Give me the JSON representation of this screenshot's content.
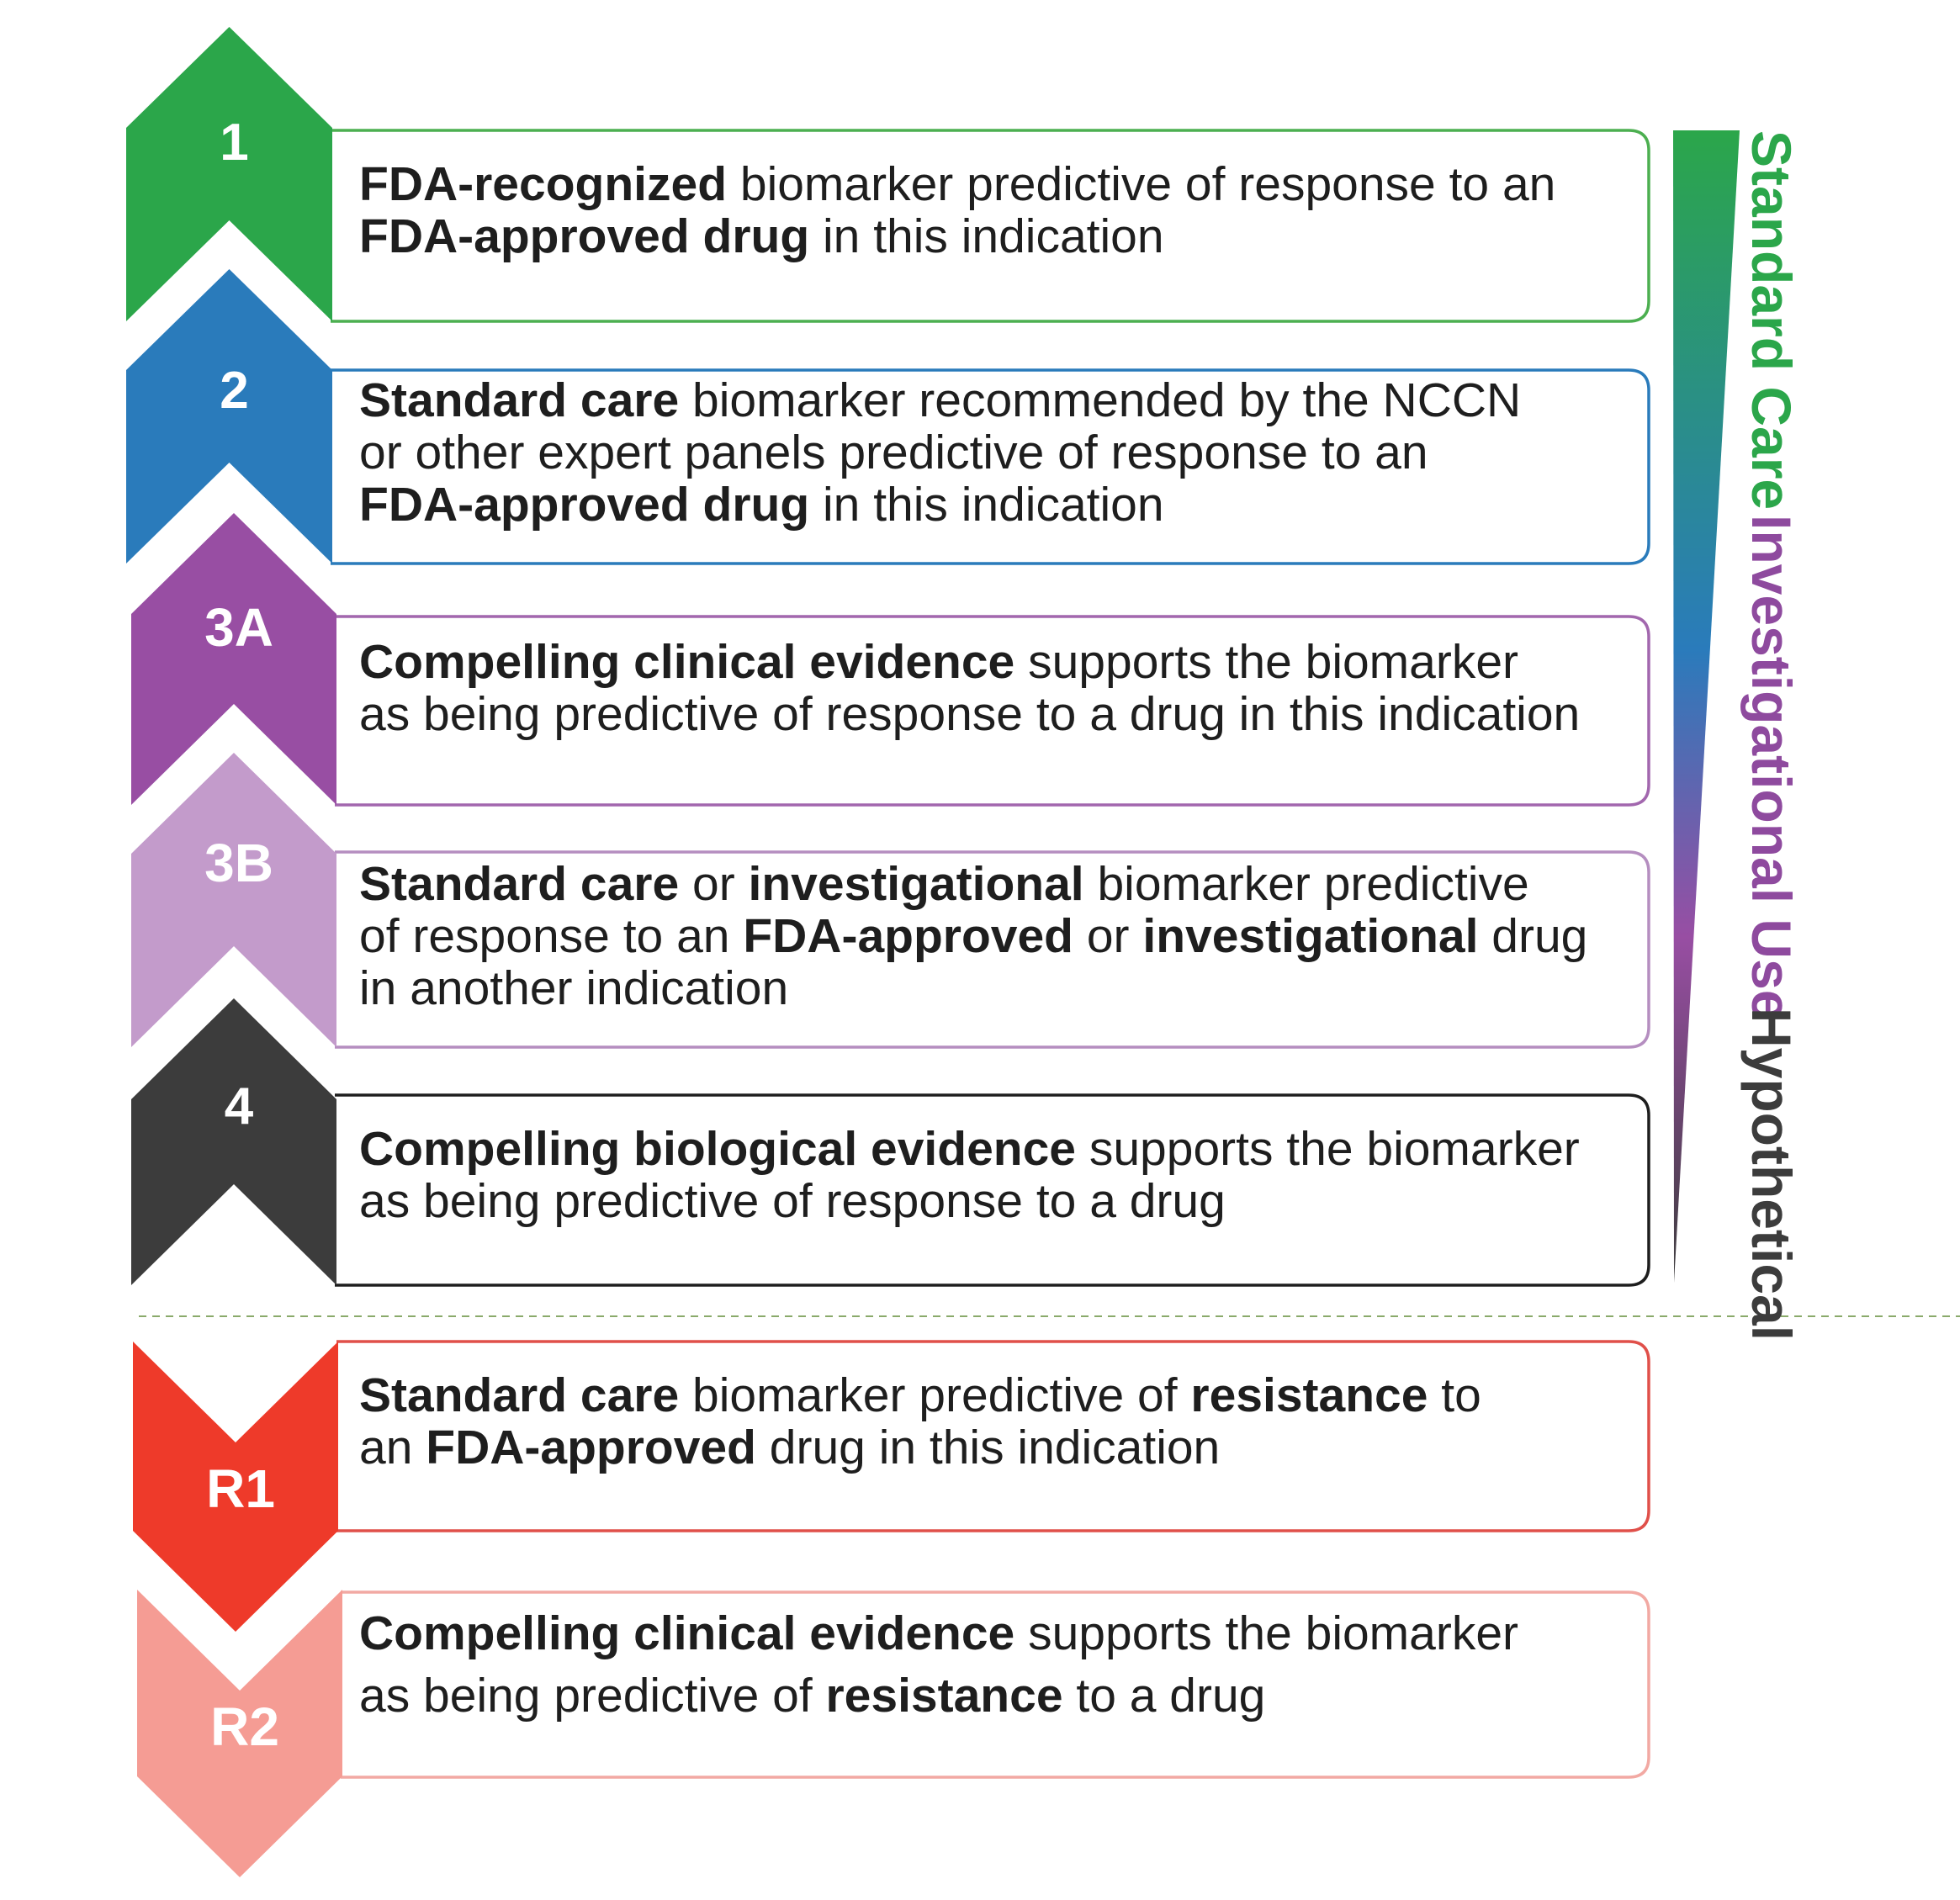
{
  "levels": [
    {
      "id": "1",
      "label": "1",
      "color": "#2ba64a",
      "box_border": "#4caf50",
      "pointer": "up",
      "lines": [
        [
          {
            "t": "FDA-recognized",
            "b": true
          },
          {
            "t": " biomarker predictive of response to an",
            "b": false
          }
        ],
        [
          {
            "t": "FDA-approved drug",
            "b": true
          },
          {
            "t": " in this indication",
            "b": false
          }
        ]
      ]
    },
    {
      "id": "2",
      "label": "2",
      "color": "#2a7bbb",
      "box_border": "#2a7bbb",
      "pointer": "up",
      "lines": [
        [
          {
            "t": "Standard care",
            "b": true
          },
          {
            "t": " biomarker recommended by the NCCN",
            "b": false
          }
        ],
        [
          {
            "t": "or other expert panels predictive of response to an",
            "b": false
          }
        ],
        [
          {
            "t": "FDA-approved drug",
            "b": true
          },
          {
            "t": " in this indication",
            "b": false
          }
        ]
      ]
    },
    {
      "id": "3A",
      "label": "3A",
      "color": "#984ea3",
      "box_border": "#a267ae",
      "pointer": "up",
      "lines": [
        [
          {
            "t": "Compelling clinical evidence",
            "b": true
          },
          {
            "t": " supports the biomarker",
            "b": false
          }
        ],
        [
          {
            "t": "as being predictive of response to a drug in this indication",
            "b": false
          }
        ]
      ]
    },
    {
      "id": "3B",
      "label": "3B",
      "color": "#c39bcb",
      "box_border": "#b58ec0",
      "pointer": "up",
      "lines": [
        [
          {
            "t": "Standard care",
            "b": true
          },
          {
            "t": " or ",
            "b": false
          },
          {
            "t": "investigational",
            "b": true
          },
          {
            "t": " biomarker predictive",
            "b": false
          }
        ],
        [
          {
            "t": "of response to an ",
            "b": false
          },
          {
            "t": "FDA-approved",
            "b": true
          },
          {
            "t": " or ",
            "b": false
          },
          {
            "t": "investigational",
            "b": true
          },
          {
            "t": " drug",
            "b": false
          }
        ],
        [
          {
            "t": "in another indication",
            "b": false
          }
        ]
      ]
    },
    {
      "id": "4",
      "label": "4",
      "color": "#3c3c3c",
      "box_border": "#1e1e1e",
      "pointer": "up",
      "lines": [
        [
          {
            "t": "Compelling biological evidence",
            "b": true
          },
          {
            "t": " supports the biomarker",
            "b": false
          }
        ],
        [
          {
            "t": "as being predictive of response to a drug",
            "b": false
          }
        ]
      ]
    },
    {
      "id": "R1",
      "label": "R1",
      "color": "#ee3a2a",
      "box_border": "#e0504a",
      "pointer": "down",
      "lines": [
        [
          {
            "t": "Standard care",
            "b": true
          },
          {
            "t": " biomarker predictive of ",
            "b": false
          },
          {
            "t": "resistance",
            "b": true
          },
          {
            "t": " to",
            "b": false
          }
        ],
        [
          {
            "t": "an ",
            "b": false
          },
          {
            "t": "FDA-approved",
            "b": true
          },
          {
            "t": " drug in this indication",
            "b": false
          }
        ]
      ]
    },
    {
      "id": "R2",
      "label": "R2",
      "color": "#f59c94",
      "box_border": "#f2a9a3",
      "pointer": "down",
      "lines": [
        [
          {
            "t": "Compelling clinical evidence",
            "b": true
          },
          {
            "t": " supports the biomarker",
            "b": false
          }
        ],
        [
          {
            "t": "as being predictive of ",
            "b": false
          },
          {
            "t": "resistance",
            "b": true
          },
          {
            "t": " to a drug",
            "b": false
          }
        ]
      ]
    }
  ],
  "side_labels": [
    {
      "text": "Standard Care",
      "color": "#2ba64a"
    },
    {
      "text": "Investigational Use",
      "color": "#8e4a9e"
    },
    {
      "text": "Hypothetical",
      "color": "#3c3c3c"
    }
  ],
  "gradient_colors": [
    "#2ba64a",
    "#2a7bbb",
    "#984ea3",
    "#3c3c3c"
  ],
  "separator_color": "#8aaa6a"
}
